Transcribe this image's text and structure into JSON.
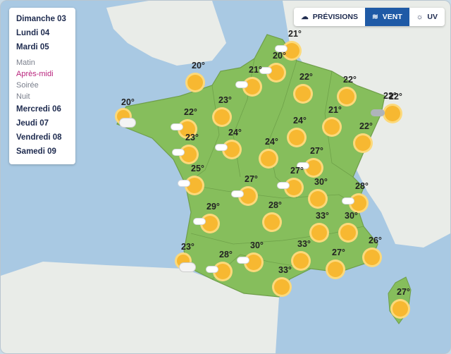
{
  "days": [
    {
      "label": "Dimanche 03"
    },
    {
      "label": "Lundi 04"
    },
    {
      "label": "Mardi 05"
    }
  ],
  "periods": [
    {
      "label": "Matin",
      "active": false
    },
    {
      "label": "Après-midi",
      "active": true
    },
    {
      "label": "Soirée",
      "active": false
    },
    {
      "label": "Nuit",
      "active": false
    }
  ],
  "later_days": [
    {
      "label": "Mercredi 06"
    },
    {
      "label": "Jeudi 07"
    },
    {
      "label": "Vendredi 08"
    },
    {
      "label": "Samedi 09"
    }
  ],
  "tabs": [
    {
      "label": "PRÉVISIONS",
      "icon": "cloud-sun-icon",
      "selected": false
    },
    {
      "label": "VENT",
      "icon": "wind-icon",
      "selected": true
    },
    {
      "label": "UV",
      "icon": "uv-icon",
      "selected": false
    }
  ],
  "colors": {
    "land": "#86be5c",
    "sea": "#a9c9e3",
    "neighbor": "#e9ece8",
    "sun": "#f7b831",
    "accent": "#1f5aa6",
    "active_period": "#b8237c"
  },
  "cities": [
    {
      "temp": "21°",
      "icon": "sun-partly-cloudy"
    },
    {
      "temp": "20°",
      "icon": "sun-partly-cloudy"
    },
    {
      "temp": "21°",
      "icon": "sun-partly-cloudy"
    },
    {
      "temp": "20°",
      "icon": "sun"
    },
    {
      "temp": "22°",
      "icon": "sun"
    },
    {
      "temp": "22°",
      "icon": "sun"
    },
    {
      "temp": "22°",
      "icon": "sun"
    },
    {
      "temp": "22°",
      "icon": "cloudy-rain"
    },
    {
      "temp": "20°",
      "icon": "cloudy"
    },
    {
      "temp": "22°",
      "icon": "sun-partly-cloudy"
    },
    {
      "temp": "23°",
      "icon": "sun"
    },
    {
      "temp": "21°",
      "icon": "sun"
    },
    {
      "temp": "23°",
      "icon": "sun-partly-cloudy"
    },
    {
      "temp": "24°",
      "icon": "sun-partly-cloudy"
    },
    {
      "temp": "24°",
      "icon": "sun"
    },
    {
      "temp": "24°",
      "icon": "sun"
    },
    {
      "temp": "22°",
      "icon": "sun"
    },
    {
      "temp": "27°",
      "icon": "sun-partly-cloudy"
    },
    {
      "temp": "25°",
      "icon": "sun-partly-cloudy"
    },
    {
      "temp": "27°",
      "icon": "sun-partly-cloudy"
    },
    {
      "temp": "27°",
      "icon": "sun-partly-cloudy"
    },
    {
      "temp": "30°",
      "icon": "sun"
    },
    {
      "temp": "28°",
      "icon": "sun-partly-cloudy"
    },
    {
      "temp": "29°",
      "icon": "sun-partly-cloudy"
    },
    {
      "temp": "28°",
      "icon": "sun"
    },
    {
      "temp": "33°",
      "icon": "sun"
    },
    {
      "temp": "30°",
      "icon": "sun"
    },
    {
      "temp": "23°",
      "icon": "cloudy"
    },
    {
      "temp": "28°",
      "icon": "sun-partly-cloudy"
    },
    {
      "temp": "30°",
      "icon": "sun-partly-cloudy"
    },
    {
      "temp": "33°",
      "icon": "sun"
    },
    {
      "temp": "27°",
      "icon": "sun"
    },
    {
      "temp": "26°",
      "icon": "sun"
    },
    {
      "temp": "33°",
      "icon": "sun"
    },
    {
      "temp": "27°",
      "icon": "sun"
    }
  ]
}
